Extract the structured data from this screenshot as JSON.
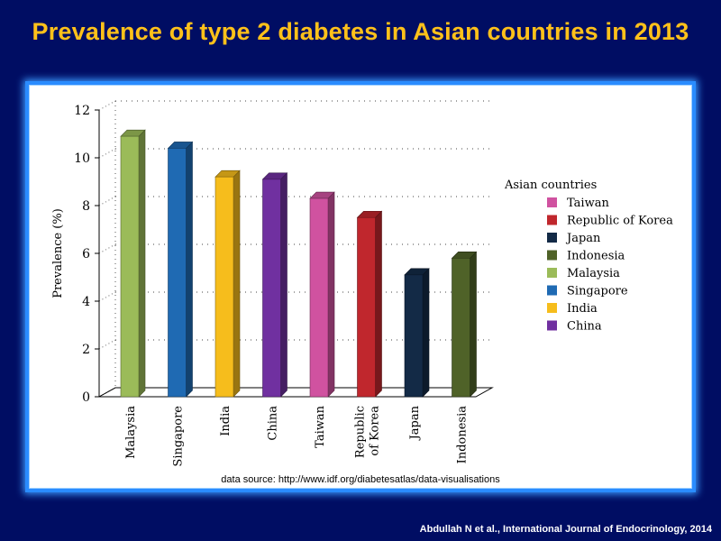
{
  "slide": {
    "title": "Prevalence of type 2 diabetes in Asian countries in 2013",
    "source": "data source: http://www.idf.org/diabetesatlas/data-visualisations",
    "citation": "Abdullah N et al., International Journal of Endocrinology, 2014"
  },
  "chart_data": {
    "type": "bar",
    "ylabel": "Prevalence (%)",
    "ylim": [
      0,
      12
    ],
    "yticks": [
      0,
      2,
      4,
      6,
      8,
      10,
      12
    ],
    "grid": true,
    "categories": [
      "Malaysia",
      "Singapore",
      "India",
      "China",
      "Taiwan",
      "Republic of Korea",
      "Japan",
      "Indonesia"
    ],
    "category_lines": [
      [
        "Malaysia"
      ],
      [
        "Singapore"
      ],
      [
        "India"
      ],
      [
        "China"
      ],
      [
        "Taiwan"
      ],
      [
        "Republic",
        "of Korea"
      ],
      [
        "Japan"
      ],
      [
        "Indonesia"
      ]
    ],
    "values": [
      10.9,
      10.4,
      9.2,
      9.1,
      8.3,
      7.5,
      5.1,
      5.8
    ],
    "colors": [
      "#9bbb59",
      "#1f6ab3",
      "#f6bd1c",
      "#7030a0",
      "#d052a0",
      "#c0272d",
      "#132a46",
      "#4f6228"
    ],
    "legend": {
      "title": "Asian countries",
      "position": "right",
      "items": [
        {
          "label": "Taiwan",
          "color": "#d052a0"
        },
        {
          "label": "Republic of Korea",
          "color": "#c0272d"
        },
        {
          "label": "Japan",
          "color": "#132a46"
        },
        {
          "label": "Indonesia",
          "color": "#4f6228"
        },
        {
          "label": "Malaysia",
          "color": "#9bbb59"
        },
        {
          "label": "Singapore",
          "color": "#1f6ab3"
        },
        {
          "label": "India",
          "color": "#f6bd1c"
        },
        {
          "label": "China",
          "color": "#7030a0"
        }
      ]
    }
  }
}
